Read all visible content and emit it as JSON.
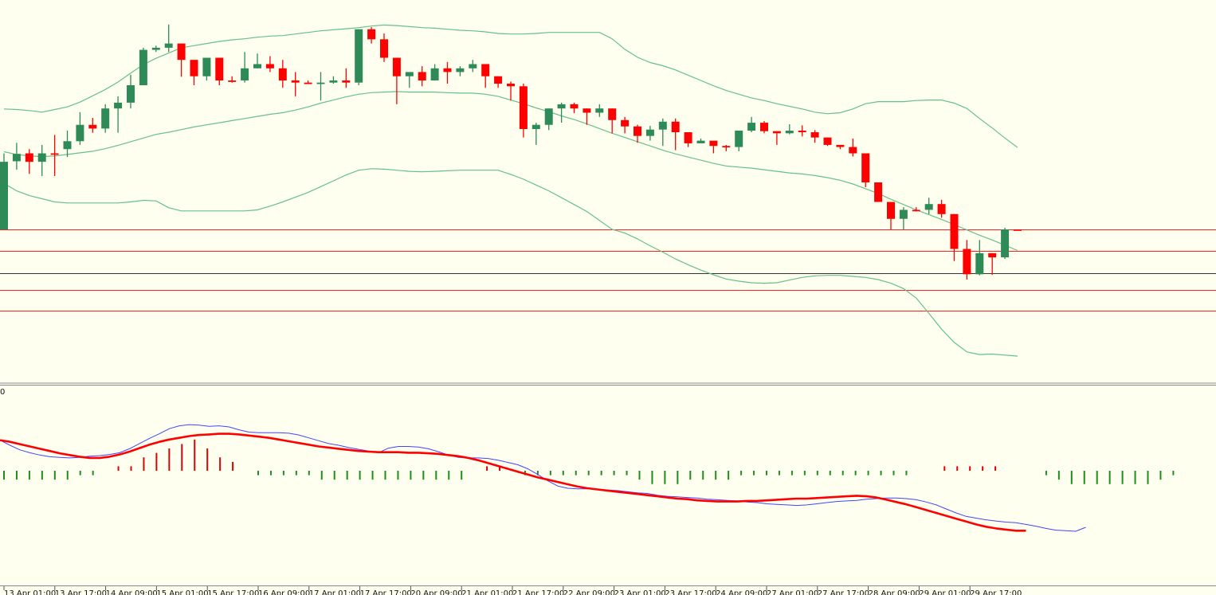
{
  "colors": {
    "background": "#FFFFF0",
    "bull": "#2E8B57",
    "bear": "#FF0000",
    "band": "#66C08A",
    "level": "#FF2020",
    "current_price_line": "#333333",
    "osc_line_1": "#4444FF",
    "osc_line_2": "#FF0000",
    "hist_pos": "#E00000",
    "hist_neg": "#1A8F1A"
  },
  "sub_window_label": "0",
  "x_axis_labels": [
    "13 Apr 01:00",
    "13 Apr 17:00",
    "14 Apr 09:00",
    "15 Apr 01:00",
    "15 Apr 17:00",
    "16 Apr 09:00",
    "17 Apr 01:00",
    "17 Apr 17:00",
    "20 Apr 09:00",
    "21 Apr 01:00",
    "21 Apr 17:00",
    "22 Apr 09:00",
    "23 Apr 01:00",
    "23 Apr 17:00",
    "24 Apr 09:00",
    "27 Apr 01:00",
    "27 Apr 17:00",
    "28 Apr 09:00",
    "29 Apr 01:00",
    "29 Apr 17:00"
  ],
  "chart_data": [
    {
      "type": "candlestick",
      "panel": "price",
      "title": "",
      "candles": [
        [
          100.0,
          101.28,
          101.44,
          100.0
        ],
        [
          101.29,
          101.43,
          101.64,
          101.13
        ],
        [
          101.44,
          101.28,
          101.52,
          101.05
        ],
        [
          101.28,
          101.44,
          101.6,
          101.01
        ],
        [
          101.44,
          101.44,
          101.79,
          101.01
        ],
        [
          101.52,
          101.67,
          101.87,
          101.37
        ],
        [
          101.67,
          101.98,
          102.22,
          101.6
        ],
        [
          101.98,
          101.91,
          102.11,
          101.83
        ],
        [
          101.91,
          102.29,
          102.37,
          101.83
        ],
        [
          102.29,
          102.4,
          102.52,
          101.83
        ],
        [
          102.4,
          102.73,
          102.93,
          102.29
        ],
        [
          102.73,
          103.4,
          103.44,
          102.73
        ],
        [
          103.4,
          103.44,
          103.48,
          103.36
        ],
        [
          103.44,
          103.52,
          103.88,
          103.36
        ],
        [
          103.52,
          103.21,
          103.52,
          102.89
        ],
        [
          103.21,
          102.9,
          103.21,
          102.73
        ],
        [
          102.9,
          103.25,
          103.25,
          102.82
        ],
        [
          103.25,
          102.82,
          103.25,
          102.73
        ],
        [
          102.82,
          102.82,
          102.9,
          102.78
        ],
        [
          102.82,
          103.05,
          103.36,
          102.78
        ],
        [
          103.05,
          103.13,
          103.33,
          103.05
        ],
        [
          103.13,
          103.05,
          103.28,
          102.98
        ],
        [
          103.05,
          102.82,
          103.21,
          102.68
        ],
        [
          102.82,
          102.78,
          102.98,
          102.52
        ],
        [
          102.78,
          102.78,
          102.82,
          102.76
        ],
        [
          102.78,
          102.78,
          102.98,
          102.44
        ],
        [
          102.78,
          102.82,
          102.9,
          102.76
        ],
        [
          102.82,
          102.78,
          103.05,
          102.68
        ],
        [
          102.78,
          103.79,
          103.79,
          102.73
        ],
        [
          103.79,
          103.6,
          103.83,
          103.52
        ],
        [
          103.6,
          103.25,
          103.71,
          103.17
        ],
        [
          103.25,
          102.9,
          103.25,
          102.37
        ],
        [
          102.9,
          102.98,
          102.98,
          102.68
        ],
        [
          102.98,
          102.82,
          103.09,
          102.71
        ],
        [
          102.82,
          103.05,
          103.13,
          102.82
        ],
        [
          103.05,
          102.98,
          103.17,
          102.76
        ],
        [
          102.98,
          103.05,
          103.09,
          102.9
        ],
        [
          103.05,
          103.13,
          103.21,
          102.98
        ],
        [
          103.13,
          102.9,
          103.13,
          102.68
        ],
        [
          102.9,
          102.76,
          102.9,
          102.68
        ],
        [
          102.76,
          102.71,
          102.8,
          102.44
        ],
        [
          102.71,
          101.9,
          102.76,
          101.74
        ],
        [
          101.9,
          101.98,
          102.02,
          101.6
        ],
        [
          101.98,
          102.29,
          102.29,
          101.88
        ],
        [
          102.29,
          102.37,
          102.4,
          102.02
        ],
        [
          102.37,
          102.29,
          102.4,
          102.2
        ],
        [
          102.29,
          102.21,
          102.29,
          101.98
        ],
        [
          102.21,
          102.29,
          102.37,
          102.13
        ],
        [
          102.29,
          102.07,
          102.29,
          101.82
        ],
        [
          102.07,
          101.95,
          102.13,
          101.82
        ],
        [
          101.95,
          101.77,
          101.98,
          101.64
        ],
        [
          101.77,
          101.89,
          101.96,
          101.68
        ],
        [
          101.89,
          102.04,
          102.1,
          101.58
        ],
        [
          102.04,
          101.84,
          102.1,
          101.5
        ],
        [
          101.84,
          101.63,
          101.84,
          101.56
        ],
        [
          101.63,
          101.68,
          101.72,
          101.64
        ],
        [
          101.68,
          101.58,
          101.58,
          101.44
        ],
        [
          101.58,
          101.56,
          101.6,
          101.48
        ],
        [
          101.56,
          101.87,
          101.87,
          101.48
        ],
        [
          101.87,
          102.02,
          102.13,
          101.84
        ],
        [
          102.02,
          101.86,
          102.05,
          101.82
        ],
        [
          101.86,
          101.82,
          101.82,
          101.6
        ],
        [
          101.82,
          101.87,
          101.99,
          101.8
        ],
        [
          101.87,
          101.84,
          101.97,
          101.76
        ],
        [
          101.84,
          101.74,
          101.88,
          101.64
        ],
        [
          101.74,
          101.6,
          101.74,
          101.58
        ],
        [
          101.6,
          101.56,
          101.6,
          101.52
        ],
        [
          101.56,
          101.44,
          101.72,
          101.38
        ],
        [
          101.44,
          100.89,
          101.44,
          100.8
        ],
        [
          100.89,
          100.52,
          100.89,
          100.52
        ],
        [
          100.52,
          100.2,
          100.52,
          100.0
        ],
        [
          100.2,
          100.37,
          100.42,
          100.0
        ],
        [
          100.37,
          100.37,
          100.42,
          100.34
        ],
        [
          100.37,
          100.48,
          100.6,
          100.29
        ],
        [
          100.48,
          100.29,
          100.56,
          100.22
        ],
        [
          100.29,
          99.63,
          100.29,
          99.4
        ],
        [
          99.63,
          99.15,
          99.8,
          99.05
        ],
        [
          99.15,
          99.55,
          99.8,
          99.13
        ],
        [
          99.55,
          99.47,
          99.55,
          99.14
        ],
        [
          99.47,
          100.0,
          100.03,
          99.44
        ],
        [
          100.0,
          100.0,
          100.0,
          100.0
        ]
      ],
      "series": [
        {
          "name": "",
          "values": [
            101.47,
            101.42,
            101.39,
            101.38,
            101.39,
            101.42,
            101.45,
            101.48,
            101.53,
            101.59,
            101.66,
            101.73,
            101.8,
            101.84,
            101.89,
            101.94,
            101.98,
            102.02,
            102.06,
            102.1,
            102.14,
            102.18,
            102.21,
            102.26,
            102.32,
            102.39,
            102.45,
            102.51,
            102.56,
            102.59,
            102.6,
            102.61,
            102.6,
            102.6,
            102.6,
            102.59,
            102.58,
            102.58,
            102.56,
            102.52,
            102.45,
            102.38,
            102.3,
            102.23,
            102.15,
            102.08,
            102.0,
            101.91,
            101.82,
            101.74,
            101.66,
            101.58,
            101.5,
            101.43,
            101.37,
            101.31,
            101.25,
            101.2,
            101.18,
            101.16,
            101.13,
            101.1,
            101.07,
            101.05,
            101.02,
            100.98,
            100.93,
            100.86,
            100.77,
            100.68,
            100.57,
            100.47,
            100.37,
            100.28,
            100.19,
            100.09,
            99.99,
            99.89,
            99.8,
            99.7,
            99.6
          ]
        },
        {
          "name": "",
          "values": [
            102.28,
            102.27,
            102.25,
            102.22,
            102.27,
            102.32,
            102.41,
            102.53,
            102.65,
            102.79,
            102.96,
            103.12,
            103.24,
            103.34,
            103.44,
            103.48,
            103.52,
            103.56,
            103.59,
            103.61,
            103.64,
            103.66,
            103.67,
            103.7,
            103.73,
            103.76,
            103.78,
            103.8,
            103.82,
            103.85,
            103.87,
            103.86,
            103.84,
            103.82,
            103.81,
            103.79,
            103.77,
            103.76,
            103.74,
            103.71,
            103.7,
            103.7,
            103.71,
            103.73,
            103.73,
            103.73,
            103.73,
            103.73,
            103.61,
            103.41,
            103.26,
            103.16,
            103.1,
            103.02,
            102.92,
            102.82,
            102.72,
            102.63,
            102.56,
            102.49,
            102.44,
            102.38,
            102.33,
            102.28,
            102.22,
            102.19,
            102.21,
            102.28,
            102.38,
            102.42,
            102.42,
            102.42,
            102.44,
            102.45,
            102.45,
            102.39,
            102.29,
            102.1,
            101.92,
            101.73,
            101.55
          ]
        },
        {
          "name": "",
          "values": [
            100.87,
            100.73,
            100.64,
            100.58,
            100.52,
            100.5,
            100.5,
            100.5,
            100.5,
            100.5,
            100.52,
            100.55,
            100.54,
            100.41,
            100.35,
            100.35,
            100.35,
            100.35,
            100.35,
            100.35,
            100.37,
            100.44,
            100.52,
            100.61,
            100.7,
            100.81,
            100.92,
            101.03,
            101.12,
            101.15,
            101.14,
            101.12,
            101.1,
            101.09,
            101.1,
            101.11,
            101.12,
            101.12,
            101.12,
            101.12,
            101.04,
            100.95,
            100.84,
            100.73,
            100.6,
            100.47,
            100.34,
            100.17,
            100.0,
            99.93,
            99.82,
            99.69,
            99.57,
            99.44,
            99.33,
            99.23,
            99.14,
            99.06,
            99.02,
            98.99,
            98.98,
            98.99,
            99.04,
            99.09,
            99.12,
            99.13,
            99.13,
            99.11,
            99.09,
            99.05,
            98.98,
            98.88,
            98.7,
            98.41,
            98.11,
            97.86,
            97.68,
            97.63,
            97.64,
            97.62,
            97.6
          ]
        }
      ],
      "horizontal_levels": [
        100.0,
        99.6,
        99.17,
        98.86,
        98.46
      ],
      "current_price": 99.17
    },
    {
      "type": "oscillator",
      "panel": "indicator",
      "series": [
        {
          "name": "",
          "values": [
            0.52,
            0.43,
            0.35,
            0.3,
            0.26,
            0.23,
            0.22,
            0.21,
            0.22,
            0.24,
            0.25,
            0.27,
            0.3,
            0.37,
            0.46,
            0.55,
            0.63,
            0.72,
            0.77,
            0.79,
            0.78,
            0.76,
            0.77,
            0.75,
            0.7,
            0.66,
            0.65,
            0.65,
            0.65,
            0.64,
            0.61,
            0.56,
            0.51,
            0.46,
            0.43,
            0.39,
            0.36,
            0.33,
            0.3,
            0.38,
            0.41,
            0.41,
            0.4,
            0.37,
            0.32,
            0.26,
            0.22,
            0.21,
            0.21,
            0.2,
            0.17,
            0.13,
            0.09,
            0.02,
            -0.08,
            -0.19,
            -0.28,
            -0.32,
            -0.33,
            -0.33,
            -0.34,
            -0.35,
            -0.36,
            -0.38,
            -0.4,
            -0.41,
            -0.44,
            -0.46,
            -0.47,
            -0.48,
            -0.49,
            -0.51,
            -0.52,
            -0.53,
            -0.54,
            -0.56,
            -0.57,
            -0.59,
            -0.6,
            -0.61,
            -0.62,
            -0.61,
            -0.59,
            -0.57,
            -0.55,
            -0.54,
            -0.53,
            -0.51,
            -0.5,
            -0.49,
            -0.49,
            -0.5,
            -0.52,
            -0.56,
            -0.61,
            -0.68,
            -0.75,
            -0.81,
            -0.84,
            -0.87,
            -0.89,
            -0.91,
            -0.92,
            -0.95,
            -0.98,
            -1.02,
            -1.05,
            -1.06,
            -1.07,
            -1.0
          ]
        },
        {
          "name": "",
          "values": [
            0.52,
            0.49,
            0.45,
            0.41,
            0.37,
            0.33,
            0.29,
            0.26,
            0.23,
            0.21,
            0.21,
            0.23,
            0.27,
            0.32,
            0.38,
            0.44,
            0.49,
            0.53,
            0.56,
            0.59,
            0.61,
            0.62,
            0.63,
            0.63,
            0.62,
            0.6,
            0.58,
            0.56,
            0.53,
            0.5,
            0.47,
            0.44,
            0.41,
            0.39,
            0.37,
            0.35,
            0.33,
            0.32,
            0.31,
            0.31,
            0.31,
            0.3,
            0.3,
            0.29,
            0.28,
            0.26,
            0.24,
            0.21,
            0.17,
            0.12,
            0.07,
            0.02,
            -0.03,
            -0.08,
            -0.13,
            -0.17,
            -0.21,
            -0.25,
            -0.29,
            -0.32,
            -0.34,
            -0.36,
            -0.38,
            -0.4,
            -0.42,
            -0.44,
            -0.46,
            -0.48,
            -0.5,
            -0.51,
            -0.53,
            -0.54,
            -0.55,
            -0.55,
            -0.55,
            -0.54,
            -0.54,
            -0.53,
            -0.52,
            -0.51,
            -0.5,
            -0.5,
            -0.49,
            -0.48,
            -0.47,
            -0.46,
            -0.45,
            -0.46,
            -0.48,
            -0.52,
            -0.56,
            -0.6,
            -0.65,
            -0.7,
            -0.75,
            -0.8,
            -0.85,
            -0.9,
            -0.95,
            -0.99,
            -1.02,
            -1.04,
            -1.06,
            -1.06
          ]
        },
        {
          "name": "",
          "values": [
            -0.02,
            -0.02,
            -0.02,
            -0.02,
            -0.02,
            -0.02,
            -0.01,
            -0.01,
            0.0,
            0.01,
            0.01,
            0.03,
            0.04,
            0.05,
            0.06,
            0.07,
            0.05,
            0.03,
            0.02,
            0.0,
            -0.01,
            -0.01,
            -0.01,
            -0.01,
            -0.01,
            -0.02,
            -0.02,
            -0.02,
            -0.02,
            -0.02,
            -0.02,
            -0.02,
            -0.02,
            -0.02,
            -0.02,
            -0.02,
            -0.02,
            0.0,
            0.01,
            0.01,
            0.0,
            -0.01,
            -0.01,
            -0.01,
            -0.01,
            -0.01,
            -0.01,
            -0.01,
            -0.01,
            -0.01,
            -0.02,
            -0.03,
            -0.03,
            -0.03,
            -0.02,
            -0.02,
            -0.02,
            -0.02,
            -0.01,
            -0.01,
            -0.01,
            -0.01,
            -0.01,
            -0.01,
            -0.01,
            -0.01,
            -0.01,
            -0.01,
            -0.01,
            -0.01,
            -0.01,
            -0.01,
            0.0,
            0.0,
            0.01,
            0.01,
            0.01,
            0.01,
            0.01,
            0.0,
            0.0,
            0.0,
            -0.01,
            -0.02,
            -0.03,
            -0.03,
            -0.03,
            -0.03,
            -0.03,
            -0.03,
            -0.03,
            -0.02,
            -0.01,
            0.0
          ]
        }
      ]
    }
  ]
}
